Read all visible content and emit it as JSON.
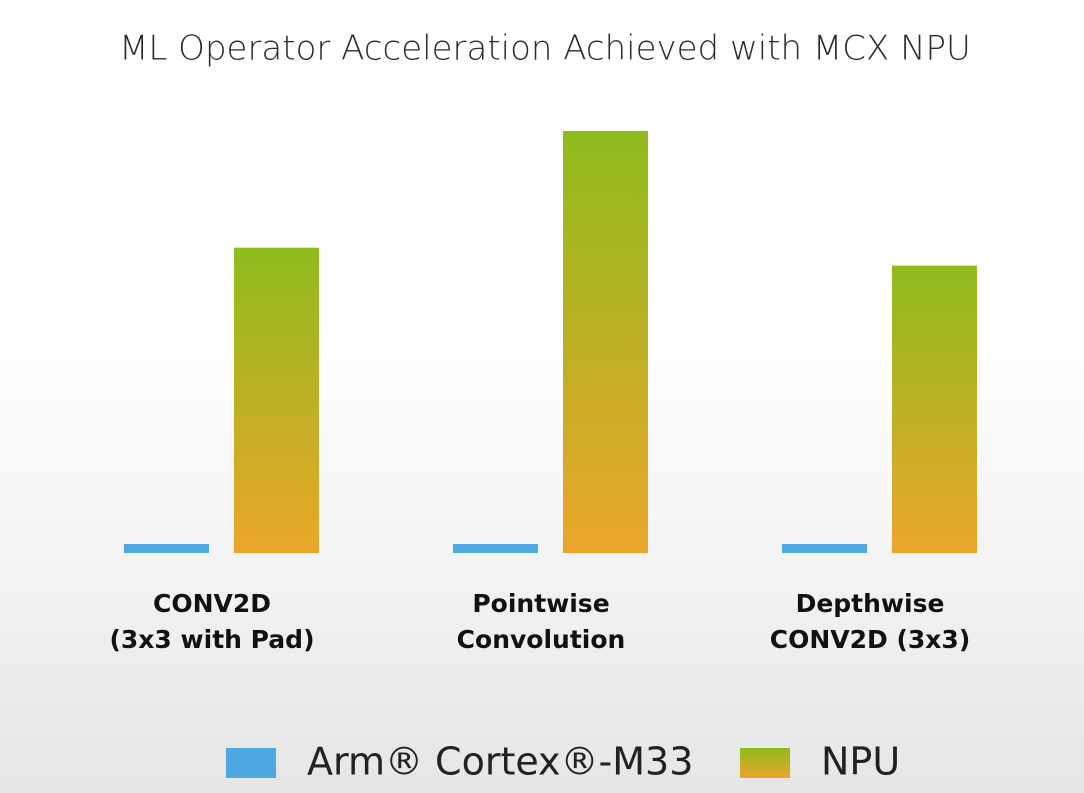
{
  "chart_data": {
    "type": "bar",
    "title": "ML Operator Acceleration Achieved with MCX NPU",
    "categories": [
      "CONV2D\n(3x3 with Pad)",
      "Pointwise\nConvolution",
      "Depthwise\nCONV2D (3x3)"
    ],
    "series": [
      {
        "name": "Arm® Cortex®-M33",
        "color": "#4ea9e2",
        "values": [
          1,
          1,
          1
        ]
      },
      {
        "name": "NPU",
        "color": "#8fbb1f",
        "color_bottom": "#eba62a",
        "values": [
          34,
          47,
          32
        ]
      }
    ],
    "ylim": [
      0,
      50
    ],
    "legend": "bottom"
  }
}
